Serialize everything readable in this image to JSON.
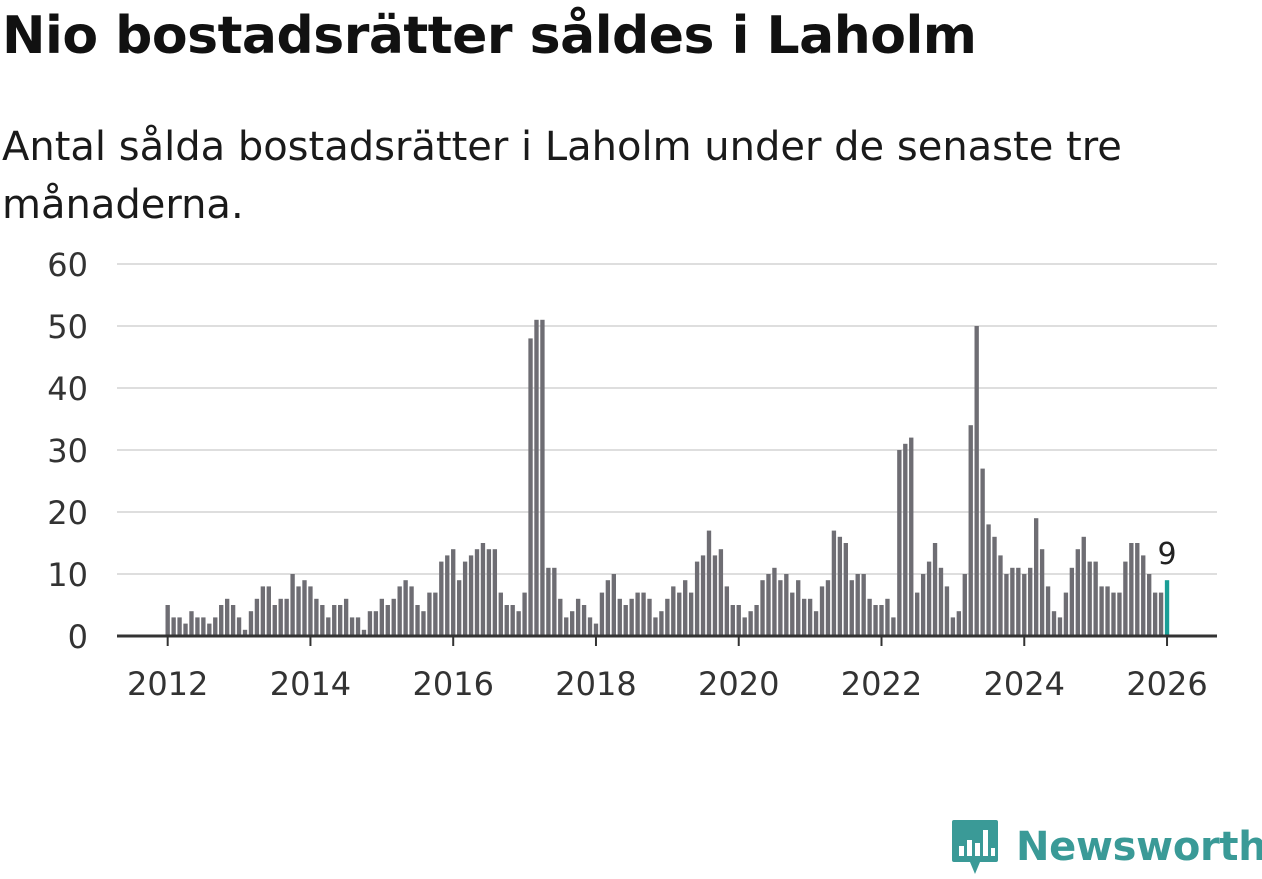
{
  "title": "Nio bostadsrätter såldes i Laholm",
  "subtitle": "Antal sålda bostadsrätter i Laholm under de senaste tre månaderna.",
  "brand": {
    "name": "Newsworthy",
    "logo_icon": "newsworthy-bar-chart-icon"
  },
  "colors": {
    "bar": "#6e6d73",
    "highlight": "#1a9e96",
    "grid": "#dedede",
    "axis": "#333333",
    "brand": "#3a9a97"
  },
  "chart_data": {
    "type": "bar",
    "title": "Nio bostadsrätter såldes i Laholm",
    "subtitle": "Antal sålda bostadsrätter i Laholm under de senaste tre månaderna.",
    "xlabel": "",
    "ylabel": "",
    "ylim": [
      0,
      60
    ],
    "yticks": [
      0,
      10,
      20,
      30,
      40,
      50,
      60
    ],
    "x_start": 2012.0,
    "x_step": 0.0833333,
    "xlim": [
      2011.29,
      2026.7
    ],
    "xticks": [
      2012,
      2014,
      2016,
      2018,
      2020,
      2022,
      2024,
      2026
    ],
    "xtick_labels": [
      "2012",
      "2014",
      "2016",
      "2018",
      "2020",
      "2022",
      "2024",
      "2026"
    ],
    "grid": true,
    "values": [
      5,
      3,
      3,
      2,
      4,
      3,
      3,
      2,
      3,
      5,
      6,
      5,
      3,
      1,
      4,
      6,
      8,
      8,
      5,
      6,
      6,
      10,
      8,
      9,
      8,
      6,
      5,
      3,
      5,
      5,
      6,
      3,
      3,
      1,
      4,
      4,
      6,
      5,
      6,
      8,
      9,
      8,
      5,
      4,
      7,
      7,
      12,
      13,
      14,
      9,
      12,
      13,
      14,
      15,
      14,
      14,
      7,
      5,
      5,
      4,
      7,
      48,
      51,
      51,
      11,
      11,
      6,
      3,
      4,
      6,
      5,
      3,
      2,
      7,
      9,
      10,
      6,
      5,
      6,
      7,
      7,
      6,
      3,
      4,
      6,
      8,
      7,
      9,
      7,
      12,
      13,
      17,
      13,
      14,
      8,
      5,
      5,
      3,
      4,
      5,
      9,
      10,
      11,
      9,
      10,
      7,
      9,
      6,
      6,
      4,
      8,
      9,
      17,
      16,
      15,
      9,
      10,
      10,
      6,
      5,
      5,
      6,
      3,
      30,
      31,
      32,
      7,
      10,
      12,
      15,
      11,
      8,
      3,
      4,
      10,
      34,
      50,
      27,
      18,
      16,
      13,
      10,
      11,
      11,
      10,
      11,
      19,
      14,
      8,
      4,
      3,
      7,
      11,
      14,
      16,
      12,
      12,
      8,
      8,
      7,
      7,
      12,
      15,
      15,
      13,
      10,
      7,
      7,
      9
    ],
    "highlight_last": true,
    "annotation": {
      "label": "9",
      "value": 9
    }
  }
}
